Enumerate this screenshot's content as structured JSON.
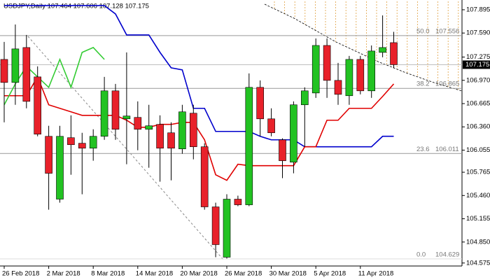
{
  "chart_data": {
    "type": "candlestick",
    "title": "USDJPY,Daily  107.464 107.606 107.128 107.175",
    "categories": [
      "26 Feb 2018",
      null,
      null,
      null,
      "2 Mar 2018",
      null,
      null,
      null,
      "8 Mar 2018",
      null,
      null,
      null,
      "14 Mar 2018",
      null,
      null,
      null,
      "20 Mar 2018",
      null,
      null,
      null,
      "26 Mar 2018",
      null,
      null,
      null,
      "30 Mar 2018",
      null,
      null,
      null,
      "5 Apr 2018",
      null,
      null,
      null,
      "11 Apr 2018",
      null,
      null,
      null
    ],
    "ohlc": [
      [
        107.244,
        107.473,
        106.419,
        106.942
      ],
      [
        106.942,
        107.702,
        106.649,
        107.382
      ],
      [
        107.4,
        107.565,
        106.603,
        106.694
      ],
      [
        107.015,
        107.153,
        106.236,
        106.264
      ],
      [
        106.236,
        106.374,
        105.274,
        105.751
      ],
      [
        105.412,
        106.374,
        105.366,
        106.236
      ],
      [
        106.218,
        106.511,
        105.732,
        106.126
      ],
      [
        106.145,
        106.282,
        105.476,
        106.08
      ],
      [
        106.08,
        106.328,
        105.916,
        106.236
      ],
      [
        106.236,
        107.015,
        106.19,
        106.832
      ],
      [
        106.832,
        106.923,
        106.19,
        106.328
      ],
      [
        106.465,
        107.336,
        105.87,
        106.502
      ],
      [
        106.484,
        106.694,
        106.053,
        106.328
      ],
      [
        106.328,
        106.649,
        105.824,
        106.374
      ],
      [
        106.392,
        106.511,
        105.641,
        106.08
      ],
      [
        106.282,
        106.419,
        105.659,
        106.08
      ],
      [
        106.071,
        106.649,
        106.007,
        106.557
      ],
      [
        106.539,
        106.649,
        105.934,
        106.099
      ],
      [
        106.099,
        106.145,
        105.274,
        105.311
      ],
      [
        105.311,
        105.366,
        104.651,
        104.816
      ],
      [
        104.651,
        105.476,
        104.633,
        105.412
      ],
      [
        105.412,
        105.458,
        105.32,
        105.338
      ],
      [
        105.338,
        107.061,
        105.32,
        106.878
      ],
      [
        106.878,
        106.969,
        106.236,
        106.465
      ],
      [
        106.465,
        106.603,
        106.236,
        106.282
      ],
      [
        106.19,
        106.209,
        105.687,
        105.916
      ],
      [
        105.897,
        106.694,
        105.751,
        106.649
      ],
      [
        106.649,
        106.878,
        106.099,
        106.832
      ],
      [
        106.804,
        107.519,
        106.74,
        107.427
      ],
      [
        107.427,
        107.519,
        106.74,
        106.969
      ],
      [
        106.969,
        107.198,
        106.649,
        106.786
      ],
      [
        106.768,
        107.29,
        106.649,
        107.244
      ],
      [
        107.244,
        107.29,
        106.786,
        106.832
      ],
      [
        106.832,
        107.427,
        106.74,
        107.354
      ],
      [
        107.336,
        107.821,
        107.272,
        107.4
      ],
      [
        107.464,
        107.606,
        107.128,
        107.175
      ]
    ],
    "up_color": "#22c222",
    "down_color": "#e8212a",
    "series": [
      {
        "color": "#0000cc",
        "values": [
          107.95,
          107.95,
          107.95,
          107.95,
          107.95,
          107.95,
          107.95,
          107.95,
          107.95,
          107.95,
          107.84,
          107.565,
          107.565,
          107.565,
          107.336,
          107.134,
          107.107,
          106.603,
          106.603,
          106.3,
          106.3,
          106.3,
          106.3,
          106.236,
          106.19,
          106.19,
          106.19,
          106.099,
          106.099,
          106.099,
          106.099,
          106.099,
          106.099,
          106.099,
          106.236,
          106.236
        ]
      },
      {
        "color": "#e00000",
        "values": [
          106.768,
          106.768,
          106.768,
          107.015,
          106.649,
          106.603,
          106.557,
          106.511,
          106.511,
          106.511,
          106.511,
          106.447,
          106.355,
          106.355,
          106.392,
          106.392,
          106.419,
          106.419,
          106.19,
          105.732,
          105.659,
          105.87,
          105.851,
          105.851,
          105.851,
          105.851,
          105.851,
          106.099,
          106.099,
          106.447,
          106.447,
          106.603,
          106.603,
          106.603,
          106.759,
          106.923
        ]
      },
      {
        "color": "#33cc33",
        "values": [
          106.649,
          106.923,
          107.153,
          107.015,
          106.878,
          107.244,
          106.878,
          107.336,
          107.4,
          107.244,
          null,
          null,
          null,
          null,
          null,
          null,
          null,
          null,
          null,
          null,
          null,
          null,
          null,
          null,
          null,
          null,
          null,
          null,
          null,
          null,
          null,
          null,
          null,
          null,
          null,
          null
        ]
      }
    ],
    "fib_levels": [
      {
        "level": "50.0",
        "value": 107.556
      },
      {
        "level": "38.2",
        "value": 106.865
      },
      {
        "level": "23.6",
        "value": 106.011
      },
      {
        "level": "0.0",
        "value": 104.629
      }
    ],
    "current_price": 107.175,
    "ylim": [
      104.49,
      108.023
    ],
    "yticks": [
      107.895,
      {
        "value": 107.59,
        "label": "107.590"
      },
      107.275,
      {
        "value": 106.97,
        "label": "106.970"
      },
      106.665,
      {
        "value": 106.36,
        "label": "106.360"
      },
      106.055,
      105.765,
      {
        "value": 105.46,
        "label": "105.460"
      },
      105.155,
      {
        "value": 104.85,
        "label": "104.850"
      },
      104.575
    ]
  }
}
